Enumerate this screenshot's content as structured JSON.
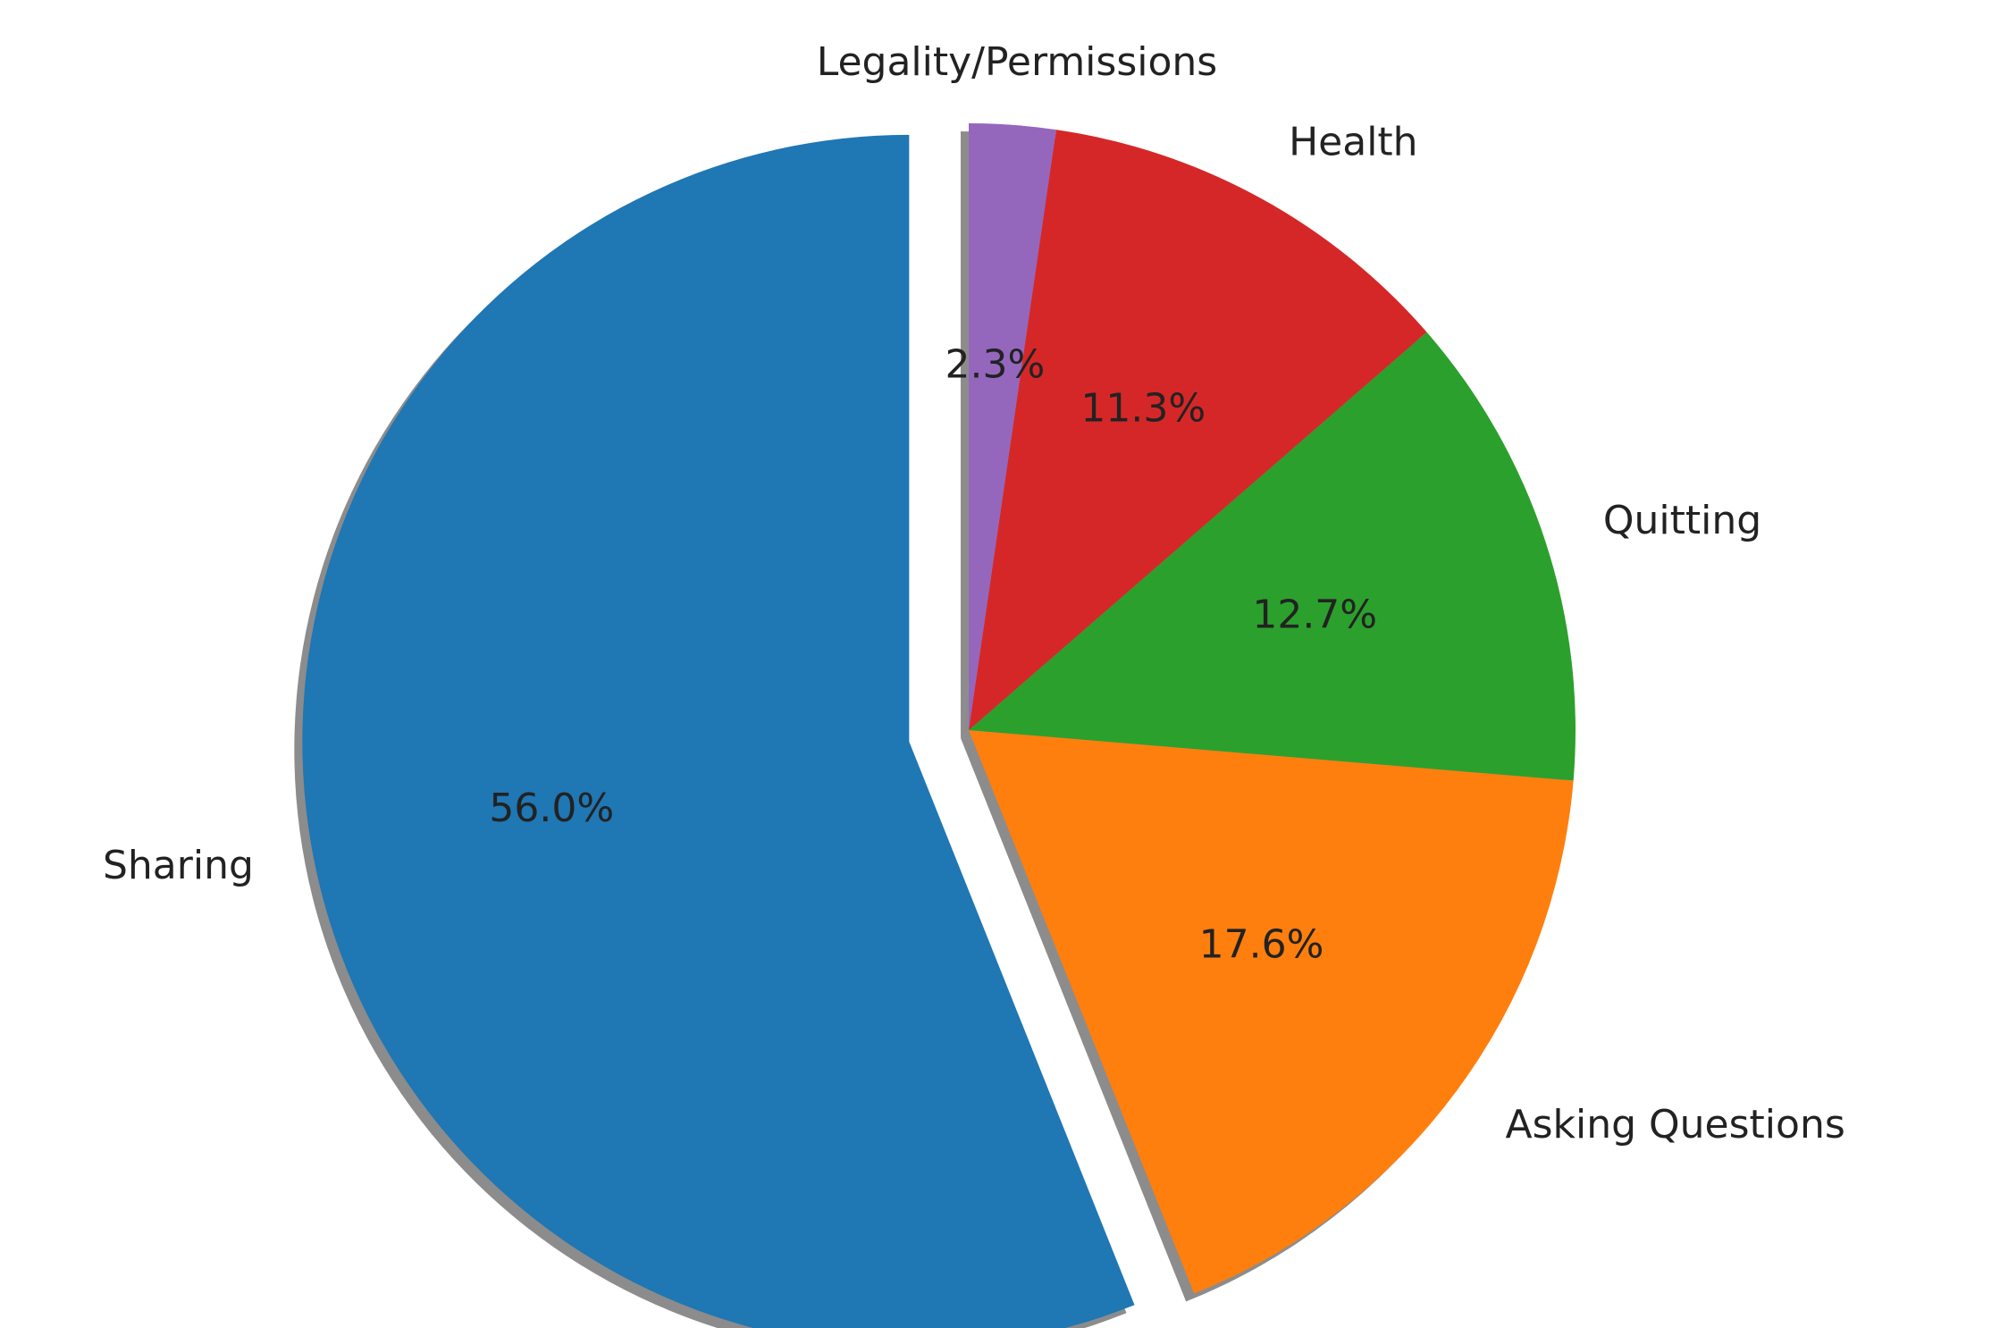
{
  "chart_data": {
    "type": "pie",
    "categories": [
      "Sharing",
      "Asking Questions",
      "Quitting",
      "Health",
      "Legality/Permissions"
    ],
    "values": [
      56.0,
      17.6,
      12.7,
      11.3,
      2.3
    ],
    "value_labels": [
      "56.0%",
      "17.6%",
      "12.7%",
      "11.3%",
      "2.3%"
    ],
    "colors": [
      "#1f77b4",
      "#ff7f0e",
      "#2ca02c",
      "#d62728",
      "#9467bd"
    ],
    "explode": [
      0.1,
      0,
      0,
      0,
      0
    ],
    "start_angle": 90,
    "shadow": true
  }
}
